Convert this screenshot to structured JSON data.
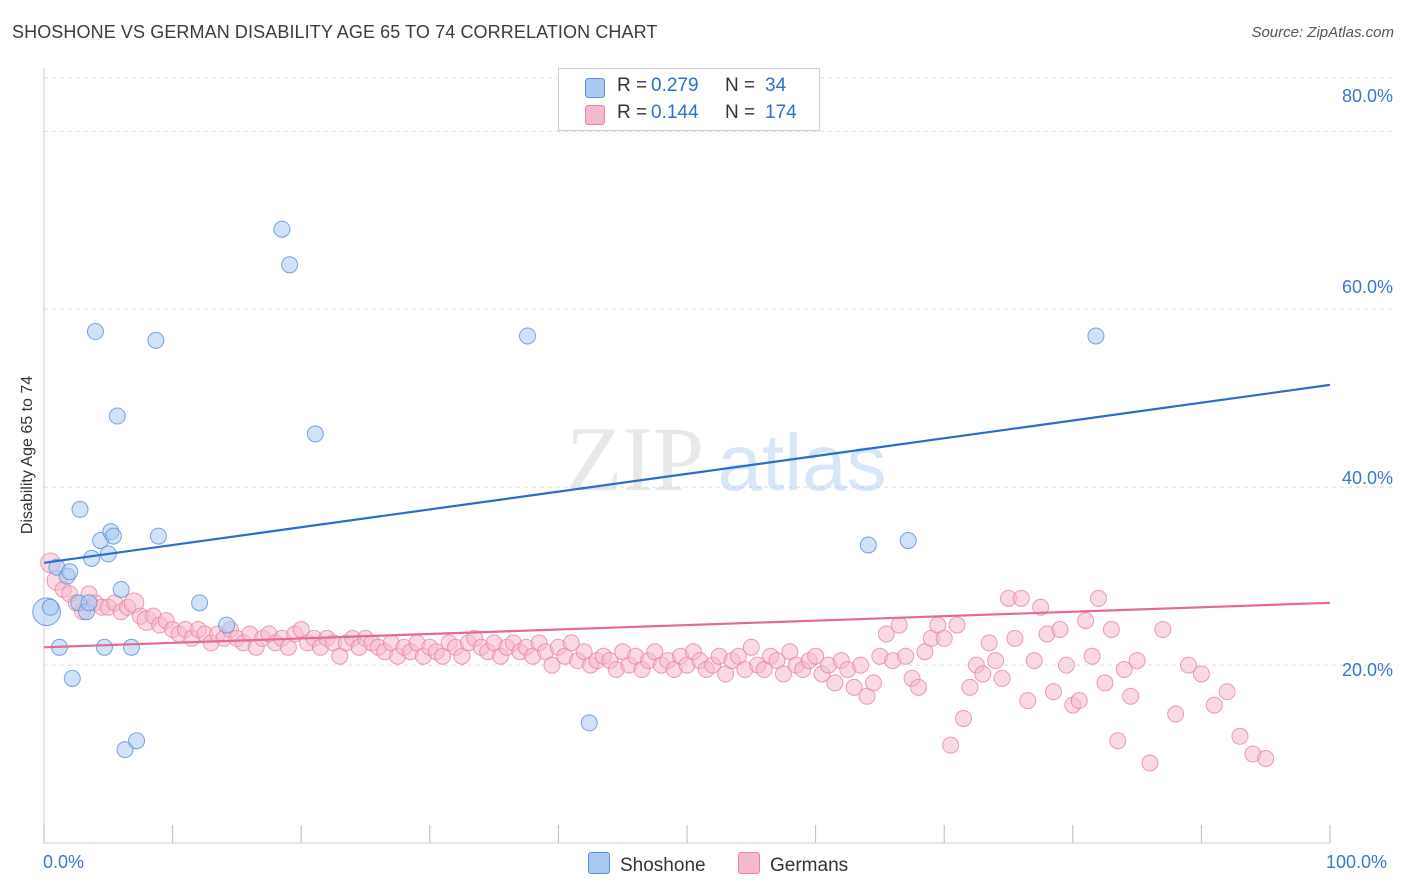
{
  "title": "SHOSHONE VS GERMAN DISABILITY AGE 65 TO 74 CORRELATION CHART",
  "source": "Source: ZipAtlas.com",
  "watermark": {
    "zip": "ZIP",
    "atlas": "atlas"
  },
  "legend": {
    "r_label": "R =",
    "n_label": "N =",
    "rows": [
      {
        "name": "Shoshone",
        "r": "0.279",
        "n": "34"
      },
      {
        "name": "Germans",
        "r": "0.144",
        "n": "174"
      }
    ]
  },
  "colors": {
    "shoshone_fill": "#a9c8f2",
    "shoshone_stroke": "#5b8fd6",
    "shoshone_line": "#2b6ccc",
    "germans_fill": "#f6b9cc",
    "germans_stroke": "#e586a5",
    "germans_line": "#e36a93",
    "grid": "#dddddd",
    "axis_text": "#3a78d0"
  },
  "chart_data": {
    "type": "scatter",
    "title": "SHOSHONE VS GERMAN DISABILITY AGE 65 TO 74 CORRELATION CHART",
    "xlabel": "",
    "ylabel": "Disability Age 65 to 74",
    "xlim": [
      0,
      100
    ],
    "ylim": [
      0,
      86
    ],
    "x_tick_labels": [
      "0.0%",
      "100.0%"
    ],
    "y_ticks": [
      20,
      40,
      60,
      80
    ],
    "y_tick_labels": [
      "20.0%",
      "40.0%",
      "60.0%",
      "80.0%"
    ],
    "grid": true,
    "legend_position": "top-center",
    "series": [
      {
        "name": "Shoshone",
        "r": 0.279,
        "n": 34,
        "trend": {
          "x": [
            0,
            100
          ],
          "y": [
            31.5,
            51.5
          ]
        },
        "points": [
          [
            0.2,
            26.0,
            3
          ],
          [
            0.5,
            26.5,
            1
          ],
          [
            1.0,
            31.0,
            1
          ],
          [
            1.2,
            22.0,
            1
          ],
          [
            1.8,
            30.0,
            1
          ],
          [
            2.0,
            30.5,
            1
          ],
          [
            2.2,
            18.5,
            1
          ],
          [
            2.7,
            27.0,
            1
          ],
          [
            2.8,
            37.5,
            1
          ],
          [
            3.3,
            26.0,
            1
          ],
          [
            3.5,
            27.0,
            1
          ],
          [
            3.7,
            32.0,
            1
          ],
          [
            4.0,
            57.5,
            1
          ],
          [
            4.4,
            34.0,
            1
          ],
          [
            4.7,
            22.0,
            1
          ],
          [
            5.0,
            32.5,
            1
          ],
          [
            5.2,
            35.0,
            1
          ],
          [
            5.4,
            34.5,
            1
          ],
          [
            5.7,
            48.0,
            1
          ],
          [
            6.0,
            28.5,
            1
          ],
          [
            6.3,
            10.5,
            1
          ],
          [
            6.8,
            22.0,
            1
          ],
          [
            7.2,
            11.5,
            1
          ],
          [
            8.7,
            56.5,
            1
          ],
          [
            8.9,
            34.5,
            1
          ],
          [
            12.1,
            27.0,
            1
          ],
          [
            14.2,
            24.5,
            1
          ],
          [
            18.5,
            69.0,
            1
          ],
          [
            19.1,
            65.0,
            1
          ],
          [
            21.1,
            46.0,
            1
          ],
          [
            37.6,
            57.0,
            1
          ],
          [
            42.4,
            13.5,
            1
          ],
          [
            64.1,
            33.5,
            1
          ],
          [
            67.2,
            34.0,
            1
          ],
          [
            81.8,
            57.0,
            1
          ]
        ]
      },
      {
        "name": "Germans",
        "r": 0.144,
        "n": 174,
        "trend": {
          "x": [
            0,
            100
          ],
          "y": [
            22.0,
            27.0
          ]
        },
        "points": [
          [
            0.5,
            31.5,
            1.5
          ],
          [
            1.0,
            29.5,
            1.5
          ],
          [
            1.5,
            28.5,
            1
          ],
          [
            2.0,
            28.0,
            1
          ],
          [
            2.5,
            27.0,
            1
          ],
          [
            3.0,
            26.0,
            1
          ],
          [
            3.5,
            28.0,
            1
          ],
          [
            4.0,
            27.0,
            1
          ],
          [
            4.5,
            26.5,
            1
          ],
          [
            5.0,
            26.5,
            1
          ],
          [
            5.5,
            27.0,
            1
          ],
          [
            6.0,
            26.0,
            1
          ],
          [
            6.5,
            26.5,
            1
          ],
          [
            7.0,
            27.0,
            1.5
          ],
          [
            7.5,
            25.5,
            1
          ],
          [
            8.0,
            25.0,
            1.5
          ],
          [
            8.5,
            25.5,
            1
          ],
          [
            9.0,
            24.5,
            1
          ],
          [
            9.5,
            25.0,
            1
          ],
          [
            10.0,
            24.0,
            1
          ],
          [
            10.5,
            23.5,
            1
          ],
          [
            11.0,
            24.0,
            1
          ],
          [
            11.5,
            23.0,
            1
          ],
          [
            12.0,
            24.0,
            1
          ],
          [
            12.5,
            23.5,
            1
          ],
          [
            13.0,
            22.5,
            1
          ],
          [
            13.5,
            23.5,
            1
          ],
          [
            14.0,
            23.0,
            1
          ],
          [
            14.5,
            24.0,
            1
          ],
          [
            15.0,
            23.0,
            1
          ],
          [
            15.5,
            22.5,
            1
          ],
          [
            16.0,
            23.5,
            1
          ],
          [
            16.5,
            22.0,
            1
          ],
          [
            17.0,
            23.0,
            1
          ],
          [
            17.5,
            23.5,
            1
          ],
          [
            18.0,
            22.5,
            1
          ],
          [
            18.5,
            23.0,
            1
          ],
          [
            19.0,
            22.0,
            1
          ],
          [
            19.5,
            23.5,
            1
          ],
          [
            20.0,
            24.0,
            1
          ],
          [
            20.5,
            22.5,
            1
          ],
          [
            21.0,
            23.0,
            1
          ],
          [
            21.5,
            22.0,
            1
          ],
          [
            22.0,
            23.0,
            1
          ],
          [
            22.5,
            22.5,
            1
          ],
          [
            23.0,
            21.0,
            1
          ],
          [
            23.5,
            22.5,
            1
          ],
          [
            24.0,
            23.0,
            1
          ],
          [
            24.5,
            22.0,
            1
          ],
          [
            25.0,
            23.0,
            1
          ],
          [
            25.5,
            22.5,
            1
          ],
          [
            26.0,
            22.0,
            1
          ],
          [
            26.5,
            21.5,
            1
          ],
          [
            27.0,
            22.5,
            1
          ],
          [
            27.5,
            21.0,
            1
          ],
          [
            28.0,
            22.0,
            1
          ],
          [
            28.5,
            21.5,
            1
          ],
          [
            29.0,
            22.5,
            1
          ],
          [
            29.5,
            21.0,
            1
          ],
          [
            30.0,
            22.0,
            1
          ],
          [
            30.5,
            21.5,
            1
          ],
          [
            31.0,
            21.0,
            1
          ],
          [
            31.5,
            22.5,
            1
          ],
          [
            32.0,
            22.0,
            1
          ],
          [
            32.5,
            21.0,
            1
          ],
          [
            33.0,
            22.5,
            1
          ],
          [
            33.5,
            23.0,
            1
          ],
          [
            34.0,
            22.0,
            1
          ],
          [
            34.5,
            21.5,
            1
          ],
          [
            35.0,
            22.5,
            1
          ],
          [
            35.5,
            21.0,
            1
          ],
          [
            36.0,
            22.0,
            1
          ],
          [
            36.5,
            22.5,
            1
          ],
          [
            37.0,
            21.5,
            1
          ],
          [
            37.5,
            22.0,
            1
          ],
          [
            38.0,
            21.0,
            1
          ],
          [
            38.5,
            22.5,
            1
          ],
          [
            39.0,
            21.5,
            1
          ],
          [
            39.5,
            20.0,
            1
          ],
          [
            40.0,
            22.0,
            1
          ],
          [
            40.5,
            21.0,
            1
          ],
          [
            41.0,
            22.5,
            1
          ],
          [
            41.5,
            20.5,
            1
          ],
          [
            42.0,
            21.5,
            1
          ],
          [
            42.5,
            20.0,
            1
          ],
          [
            43.0,
            20.5,
            1
          ],
          [
            43.5,
            21.0,
            1
          ],
          [
            44.0,
            20.5,
            1
          ],
          [
            44.5,
            19.5,
            1
          ],
          [
            45.0,
            21.5,
            1
          ],
          [
            45.5,
            20.0,
            1
          ],
          [
            46.0,
            21.0,
            1
          ],
          [
            46.5,
            19.5,
            1
          ],
          [
            47.0,
            20.5,
            1
          ],
          [
            47.5,
            21.5,
            1
          ],
          [
            48.0,
            20.0,
            1
          ],
          [
            48.5,
            20.5,
            1
          ],
          [
            49.0,
            19.5,
            1
          ],
          [
            49.5,
            21.0,
            1
          ],
          [
            50.0,
            20.0,
            1
          ],
          [
            50.5,
            21.5,
            1
          ],
          [
            51.0,
            20.5,
            1
          ],
          [
            51.5,
            19.5,
            1
          ],
          [
            52.0,
            20.0,
            1
          ],
          [
            52.5,
            21.0,
            1
          ],
          [
            53.0,
            19.0,
            1
          ],
          [
            53.5,
            20.5,
            1
          ],
          [
            54.0,
            21.0,
            1
          ],
          [
            54.5,
            19.5,
            1
          ],
          [
            55.0,
            22.0,
            1
          ],
          [
            55.5,
            20.0,
            1
          ],
          [
            56.0,
            19.5,
            1
          ],
          [
            56.5,
            21.0,
            1
          ],
          [
            57.0,
            20.5,
            1
          ],
          [
            57.5,
            19.0,
            1
          ],
          [
            58.0,
            21.5,
            1
          ],
          [
            58.5,
            20.0,
            1
          ],
          [
            59.0,
            19.5,
            1
          ],
          [
            59.5,
            20.5,
            1
          ],
          [
            60.0,
            21.0,
            1
          ],
          [
            60.5,
            19.0,
            1
          ],
          [
            61.0,
            20.0,
            1
          ],
          [
            61.5,
            18.0,
            1
          ],
          [
            62.0,
            20.5,
            1
          ],
          [
            62.5,
            19.5,
            1
          ],
          [
            63.0,
            17.5,
            1
          ],
          [
            63.5,
            20.0,
            1
          ],
          [
            64.0,
            16.5,
            1
          ],
          [
            64.5,
            18.0,
            1
          ],
          [
            65.0,
            21.0,
            1
          ],
          [
            65.5,
            23.5,
            1
          ],
          [
            66.0,
            20.5,
            1
          ],
          [
            66.5,
            24.5,
            1
          ],
          [
            67.0,
            21.0,
            1
          ],
          [
            67.5,
            18.5,
            1
          ],
          [
            68.0,
            17.5,
            1
          ],
          [
            68.5,
            21.5,
            1
          ],
          [
            69.0,
            23.0,
            1
          ],
          [
            69.5,
            24.5,
            1
          ],
          [
            70.0,
            23.0,
            1
          ],
          [
            70.5,
            11.0,
            1
          ],
          [
            71.0,
            24.5,
            1
          ],
          [
            71.5,
            14.0,
            1
          ],
          [
            72.0,
            17.5,
            1
          ],
          [
            72.5,
            20.0,
            1
          ],
          [
            73.0,
            19.0,
            1
          ],
          [
            73.5,
            22.5,
            1
          ],
          [
            74.0,
            20.5,
            1
          ],
          [
            74.5,
            18.5,
            1
          ],
          [
            75.0,
            27.5,
            1
          ],
          [
            75.5,
            23.0,
            1
          ],
          [
            76.0,
            27.5,
            1
          ],
          [
            76.5,
            16.0,
            1
          ],
          [
            77.0,
            20.5,
            1
          ],
          [
            77.5,
            26.5,
            1
          ],
          [
            78.0,
            23.5,
            1
          ],
          [
            78.5,
            17.0,
            1
          ],
          [
            79.0,
            24.0,
            1
          ],
          [
            79.5,
            20.0,
            1
          ],
          [
            80.0,
            15.5,
            1
          ],
          [
            80.5,
            16.0,
            1
          ],
          [
            81.0,
            25.0,
            1
          ],
          [
            81.5,
            21.0,
            1
          ],
          [
            82.0,
            27.5,
            1
          ],
          [
            82.5,
            18.0,
            1
          ],
          [
            83.0,
            24.0,
            1
          ],
          [
            83.5,
            11.5,
            1
          ],
          [
            84.0,
            19.5,
            1
          ],
          [
            84.5,
            16.5,
            1
          ],
          [
            85.0,
            20.5,
            1
          ],
          [
            86.0,
            9.0,
            1
          ],
          [
            87.0,
            24.0,
            1
          ],
          [
            88.0,
            14.5,
            1
          ],
          [
            89.0,
            20.0,
            1
          ],
          [
            90.0,
            19.0,
            1
          ],
          [
            91.0,
            15.5,
            1
          ],
          [
            92.0,
            17.0,
            1
          ],
          [
            93.0,
            12.0,
            1
          ],
          [
            94.0,
            10.0,
            1
          ],
          [
            95.0,
            9.5,
            1
          ]
        ]
      }
    ]
  }
}
